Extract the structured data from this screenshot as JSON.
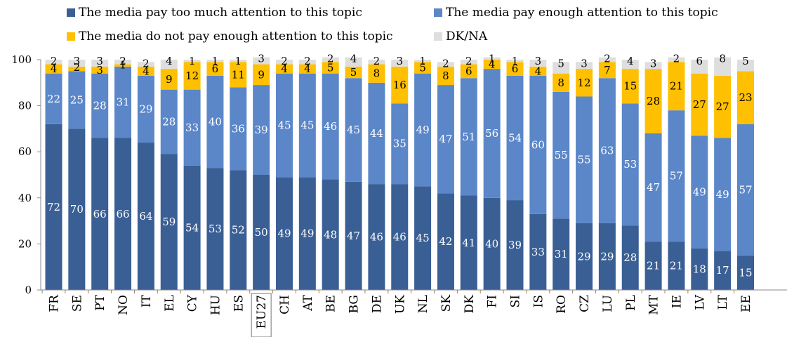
{
  "chart_data": {
    "type": "bar",
    "stacked": true,
    "categories": [
      "FR",
      "SE",
      "PT",
      "NO",
      "IT",
      "EL",
      "CY",
      "HU",
      "ES",
      "EU27",
      "CH",
      "AT",
      "BE",
      "BG",
      "DE",
      "UK",
      "NL",
      "SK",
      "DK",
      "FI",
      "SI",
      "IS",
      "RO",
      "CZ",
      "LU",
      "PL",
      "MT",
      "IE",
      "LV",
      "LT",
      "EE"
    ],
    "series": [
      {
        "name": "The media pay too much attention to this topic",
        "color": "#3a5f95",
        "values": [
          72,
          70,
          66,
          66,
          64,
          59,
          54,
          53,
          52,
          50,
          49,
          49,
          48,
          47,
          46,
          46,
          45,
          42,
          41,
          40,
          39,
          33,
          31,
          29,
          29,
          28,
          21,
          21,
          18,
          17,
          15
        ]
      },
      {
        "name": "The media pay enough attention to this topic",
        "color": "#5b87c9",
        "values": [
          22,
          25,
          28,
          31,
          29,
          28,
          33,
          40,
          36,
          39,
          45,
          45,
          46,
          45,
          44,
          35,
          49,
          47,
          51,
          56,
          54,
          60,
          55,
          55,
          63,
          53,
          47,
          57,
          49,
          49,
          57
        ]
      },
      {
        "name": "The media do not pay enough attention to this topic",
        "color": "#fec000",
        "values": [
          4,
          2,
          3,
          1,
          4,
          9,
          12,
          6,
          11,
          9,
          4,
          4,
          5,
          5,
          8,
          16,
          5,
          8,
          6,
          4,
          6,
          4,
          8,
          12,
          7,
          15,
          28,
          21,
          27,
          27,
          23
        ]
      },
      {
        "name": "DK/NA",
        "color": "#dedede",
        "values": [
          2,
          3,
          3,
          2,
          2,
          4,
          1,
          1,
          1,
          3,
          2,
          2,
          2,
          4,
          2,
          3,
          1,
          2,
          2,
          1,
          1,
          3,
          5,
          3,
          2,
          4,
          3,
          2,
          6,
          8,
          5
        ]
      }
    ],
    "ylim": [
      0,
      100
    ],
    "yticks": [
      0,
      20,
      40,
      60,
      80,
      100
    ],
    "highlight_category": "EU27",
    "legend_position": "top"
  }
}
